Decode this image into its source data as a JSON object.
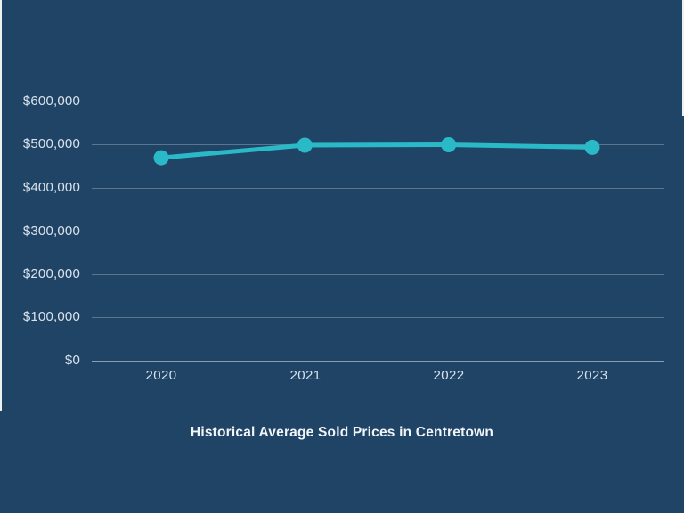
{
  "page": {
    "background_color": "#204465"
  },
  "chart_data": {
    "type": "line",
    "title": "Historical Average Sold Prices in Centretown",
    "categories": [
      "2020",
      "2021",
      "2022",
      "2023"
    ],
    "values": [
      470000,
      499000,
      500000,
      494000
    ],
    "xlabel": "",
    "ylabel": "",
    "ylim": [
      0,
      600000
    ],
    "ytick_step": 100000,
    "ytick_labels_top_to_bottom": [
      "$600,000",
      "$500,000",
      "$400,000",
      "$300,000",
      "$200,000",
      "$100,000",
      "$0"
    ],
    "grid": "horizontal",
    "legend": "none",
    "line_color": "#2ab9c7",
    "marker": "circle",
    "title_color": "#f0f5fa",
    "tick_color": "#d9e3ed"
  }
}
